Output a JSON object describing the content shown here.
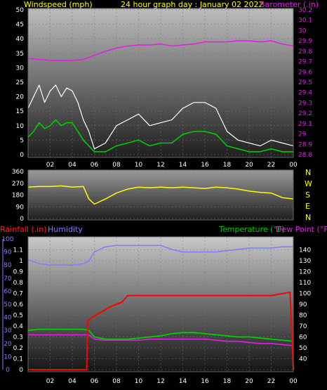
{
  "header": {
    "windspeed_label": "Windspeed (mph)",
    "title": "24 hour graph day : January 02 2022",
    "barometer_label": "Barometer (.in)"
  },
  "colors": {
    "wind": "#ffffff",
    "wind_avg": "#00cc00",
    "barometer": "#e020e0",
    "direction": "#ffff00",
    "rain": "#ff0000",
    "humidity": "#8080ff",
    "temperature": "#00d000",
    "dewpoint": "#e020e0",
    "axis_left": "#ffffff",
    "axis_baro": "#e020e0"
  },
  "direction_letters": [
    "N",
    "W",
    "S",
    "E",
    "N"
  ],
  "bottom_header": {
    "rain_label": "Rainfall (.in)",
    "humidity_label": "Humidity",
    "temp_label": "Temperature (°F)",
    "dew_label": "Dew Point (°F)"
  },
  "chart_data": [
    {
      "type": "line",
      "panel": "wind-barometer",
      "x_ticks": [
        "02",
        "04",
        "06",
        "08",
        "10",
        "12",
        "14",
        "16",
        "18",
        "20",
        "22",
        "00"
      ],
      "ylim_left": [
        0,
        50
      ],
      "left_ticks": [
        "0",
        "5",
        "10",
        "15",
        "20",
        "25",
        "30",
        "35",
        "40",
        "45",
        "50"
      ],
      "ylim_right": [
        28.8,
        30.2
      ],
      "right_ticks": [
        "28.8",
        "28.9",
        "29",
        "29.1",
        "29.2",
        "29.3",
        "29.4",
        "29.5",
        "29.6",
        "29.7",
        "29.8",
        "29.9",
        "30",
        "30.1",
        "30.2"
      ],
      "series": [
        {
          "key": "barometer",
          "axis": "right",
          "x": [
            0,
            1,
            2,
            3,
            4,
            5,
            6,
            7,
            8,
            9,
            10,
            11,
            12,
            13,
            14,
            15,
            16,
            17,
            18,
            19,
            20,
            21,
            22,
            23,
            24
          ],
          "values": [
            29.73,
            29.72,
            29.71,
            29.71,
            29.71,
            29.72,
            29.76,
            29.8,
            29.83,
            29.85,
            29.86,
            29.86,
            29.87,
            29.85,
            29.86,
            29.87,
            29.89,
            29.89,
            29.89,
            29.9,
            29.9,
            29.89,
            29.9,
            29.87,
            29.85
          ]
        },
        {
          "key": "wind_gust",
          "axis": "left",
          "x": [
            0,
            0.5,
            1,
            1.5,
            2,
            2.5,
            3,
            3.5,
            4,
            4.5,
            5,
            5.5,
            6,
            7,
            8,
            9,
            10,
            11,
            12,
            13,
            14,
            15,
            16,
            17,
            18,
            19,
            20,
            21,
            22,
            23,
            24
          ],
          "values": [
            16,
            20,
            24,
            18,
            22,
            24,
            20,
            23,
            22,
            18,
            12,
            8,
            2,
            4,
            10,
            12,
            14,
            10,
            11,
            12,
            16,
            18,
            18,
            16,
            8,
            5,
            4,
            3,
            5,
            4,
            3
          ]
        },
        {
          "key": "wind_avg",
          "axis": "left",
          "x": [
            0,
            0.5,
            1,
            1.5,
            2,
            2.5,
            3,
            3.5,
            4,
            4.5,
            5,
            5.5,
            6,
            7,
            8,
            9,
            10,
            11,
            12,
            13,
            14,
            15,
            16,
            17,
            18,
            19,
            20,
            21,
            22,
            23,
            24
          ],
          "values": [
            6,
            8,
            11,
            9,
            10,
            12,
            10,
            11,
            11,
            8,
            5,
            3,
            1,
            1,
            3,
            4,
            5,
            3,
            4,
            4,
            7,
            8,
            8,
            7,
            3,
            2,
            1,
            1,
            2,
            1,
            1
          ]
        }
      ]
    },
    {
      "type": "line",
      "panel": "wind-direction",
      "ylim": [
        0,
        360
      ],
      "ticks": [
        "0",
        "90",
        "180",
        "270",
        "360"
      ],
      "series": [
        {
          "key": "direction",
          "x": [
            0,
            1,
            2,
            3,
            4,
            5,
            5.5,
            6,
            7,
            8,
            9,
            10,
            11,
            12,
            13,
            14,
            15,
            16,
            17,
            18,
            19,
            20,
            21,
            22,
            23,
            24
          ],
          "values": [
            240,
            245,
            245,
            250,
            240,
            245,
            150,
            110,
            150,
            195,
            225,
            240,
            235,
            240,
            235,
            240,
            235,
            230,
            240,
            235,
            225,
            210,
            200,
            195,
            160,
            150
          ]
        }
      ]
    },
    {
      "type": "line",
      "panel": "rain-humidity-temp",
      "x_ticks": [
        "02",
        "04",
        "06",
        "08",
        "10",
        "12",
        "14",
        "16",
        "18",
        "20",
        "22",
        "00"
      ],
      "ylim_rain": [
        0,
        1.2
      ],
      "rain_ticks": [
        "0",
        "0.1",
        "0.2",
        "0.3",
        "0.4",
        "0.5",
        "0.6",
        "0.7",
        "0.8",
        "0.9",
        "1",
        "1.1"
      ],
      "ylim_humidity": [
        0,
        100
      ],
      "humidity_ticks": [
        "0",
        "10",
        "20",
        "30",
        "40",
        "50",
        "60",
        "70",
        "80",
        "90",
        "100"
      ],
      "ylim_temp": [
        30,
        150
      ],
      "temp_ticks": [
        "40",
        "50",
        "60",
        "70",
        "80",
        "90",
        "100",
        "110",
        "120",
        "130",
        "140"
      ],
      "series": [
        {
          "key": "rain",
          "axis": "rain",
          "x": [
            0,
            5.3,
            5.4,
            5.8,
            6.5,
            7.5,
            8.5,
            9.0,
            10,
            12,
            14,
            16,
            18,
            20,
            22,
            23.7,
            24
          ],
          "values": [
            0,
            0,
            0.45,
            0.48,
            0.52,
            0.58,
            0.62,
            0.68,
            0.68,
            0.68,
            0.68,
            0.68,
            0.68,
            0.68,
            0.68,
            0.71,
            0
          ]
        },
        {
          "key": "humidity",
          "axis": "humidity",
          "x": [
            0,
            1,
            2,
            3,
            4,
            5,
            5.5,
            6,
            7,
            8,
            9,
            10,
            11,
            12,
            13,
            14,
            15,
            16,
            17,
            18,
            19,
            20,
            21,
            22,
            23,
            24
          ],
          "values": [
            84,
            81,
            80,
            80,
            80,
            81,
            83,
            90,
            94,
            95,
            95,
            95,
            95,
            95,
            92,
            90,
            90,
            90,
            90,
            91,
            92,
            93,
            93,
            93,
            94,
            94
          ]
        },
        {
          "key": "temperature",
          "axis": "temp",
          "x": [
            0,
            1,
            2,
            3,
            4,
            5,
            5.5,
            6,
            7,
            8,
            9,
            10,
            11,
            12,
            13,
            14,
            15,
            16,
            17,
            18,
            19,
            20,
            21,
            22,
            23,
            24
          ],
          "values": [
            66,
            67,
            67,
            67,
            67,
            67,
            66,
            60,
            58,
            58,
            58,
            59,
            60,
            61,
            63,
            64,
            64,
            63,
            62,
            61,
            60,
            60,
            59,
            58,
            57,
            56
          ]
        },
        {
          "key": "dewpoint",
          "axis": "temp",
          "x": [
            0,
            1,
            2,
            3,
            4,
            5,
            5.5,
            6,
            7,
            8,
            9,
            10,
            11,
            12,
            13,
            14,
            15,
            16,
            17,
            18,
            19,
            20,
            21,
            22,
            23,
            24
          ],
          "values": [
            62,
            62,
            62,
            62,
            62,
            62,
            62,
            58,
            57,
            57,
            57,
            57,
            58,
            58,
            58,
            58,
            58,
            58,
            57,
            56,
            56,
            55,
            54,
            54,
            53,
            52
          ]
        }
      ]
    }
  ]
}
